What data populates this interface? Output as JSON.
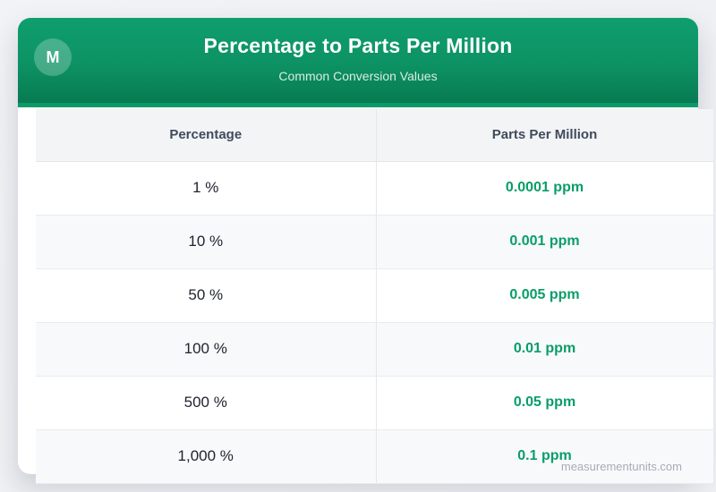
{
  "header": {
    "badge_letter": "M",
    "title": "Percentage to Parts Per Million",
    "subtitle": "Common Conversion Values"
  },
  "table": {
    "columns": [
      "Percentage",
      "Parts Per Million"
    ],
    "rows": [
      {
        "percentage": "1 %",
        "ppm": "0.0001 ppm"
      },
      {
        "percentage": "10 %",
        "ppm": "0.001 ppm"
      },
      {
        "percentage": "50 %",
        "ppm": "0.005 ppm"
      },
      {
        "percentage": "100 %",
        "ppm": "0.01 ppm"
      },
      {
        "percentage": "500 %",
        "ppm": "0.05 ppm"
      },
      {
        "percentage": "1,000 %",
        "ppm": "0.1 ppm"
      }
    ]
  },
  "footer": {
    "watermark": "measurementunits.com"
  },
  "colors": {
    "header_green_top": "#0f9e6e",
    "header_green_bottom": "#087a52",
    "header_lip_green": "#0c9b68",
    "ppm_text_green": "#0a9d68",
    "table_header_bg": "#f3f4f6",
    "alt_row_bg": "#f8f9fb",
    "heading_text": "#414a5c",
    "body_text": "#20242e",
    "watermark_text": "#a6acb6",
    "page_bg": "#eff1f4",
    "card_bg": "#ffffff"
  }
}
